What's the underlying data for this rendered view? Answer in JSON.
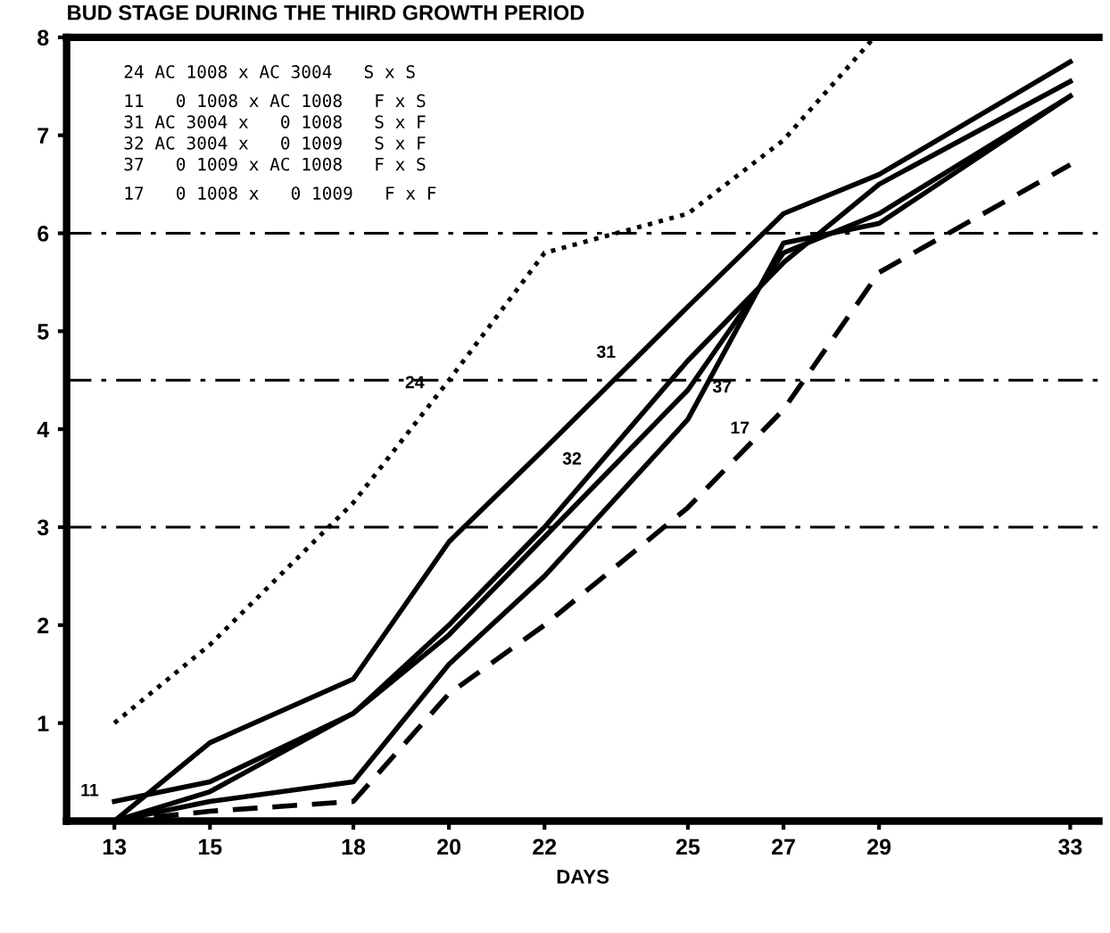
{
  "chart_data": {
    "type": "line",
    "title": "BUD STAGE DURING THE THIRD GROWTH PERIOD",
    "xlabel": "DAYS",
    "x": [
      13,
      15,
      18,
      20,
      22,
      25,
      27,
      29,
      33
    ],
    "series": [
      {
        "name": "24",
        "color": "#000000",
        "line_style": "dotted",
        "x": [
          13,
          15,
          18,
          20,
          22,
          25,
          27,
          28.9
        ],
        "values": [
          1.0,
          1.8,
          3.25,
          4.5,
          5.8,
          6.2,
          6.95,
          8.0
        ]
      },
      {
        "name": "31",
        "color": "#000000",
        "line_style": "solid",
        "values": [
          0,
          0.8,
          1.45,
          2.85,
          3.8,
          5.25,
          6.2,
          6.6,
          7.75
        ]
      },
      {
        "name": "32",
        "color": "#000000",
        "line_style": "solid",
        "values": [
          0,
          0.3,
          1.1,
          2.0,
          3.0,
          4.7,
          5.7,
          6.5,
          7.55
        ]
      },
      {
        "name": "11",
        "color": "#000000",
        "line_style": "solid",
        "values": [
          0.2,
          0.4,
          1.1,
          1.9,
          2.9,
          4.4,
          5.8,
          6.2,
          7.4
        ]
      },
      {
        "name": "37",
        "color": "#000000",
        "line_style": "solid",
        "values": [
          0,
          0.2,
          0.4,
          1.6,
          2.5,
          4.1,
          5.9,
          6.1,
          7.4
        ]
      },
      {
        "name": "17",
        "color": "#000000",
        "line_style": "dashed",
        "values": [
          0,
          0.1,
          0.2,
          1.3,
          2.0,
          3.2,
          4.2,
          5.6,
          6.7
        ]
      }
    ],
    "xlim": [
      12,
      33.6
    ],
    "ylim": [
      0,
      8
    ],
    "xticks": [
      13,
      15,
      18,
      20,
      22,
      25,
      27,
      29,
      33
    ],
    "yticks": [
      1,
      2,
      3,
      4,
      5,
      6,
      7,
      8
    ],
    "ref_lines": [
      {
        "axis": "y",
        "value": 6,
        "line_style": "dashdot"
      },
      {
        "axis": "y",
        "value": 4.5,
        "line_style": "dashdot"
      },
      {
        "axis": "y",
        "value": 3,
        "line_style": "dashdot"
      }
    ],
    "annotations": [
      "24 AC 1008 x AC 3004   S x S",
      "11   0 1008 x AC 1008   F x S",
      "31 AC 3004 x   0 1008   S x F",
      "32 AC 3004 x   0 1009   S x F",
      "37   0 1009 x AC 1008   F x S",
      "17   0 1008 x   0 1009   F x F"
    ],
    "grid": false,
    "legend": false
  }
}
